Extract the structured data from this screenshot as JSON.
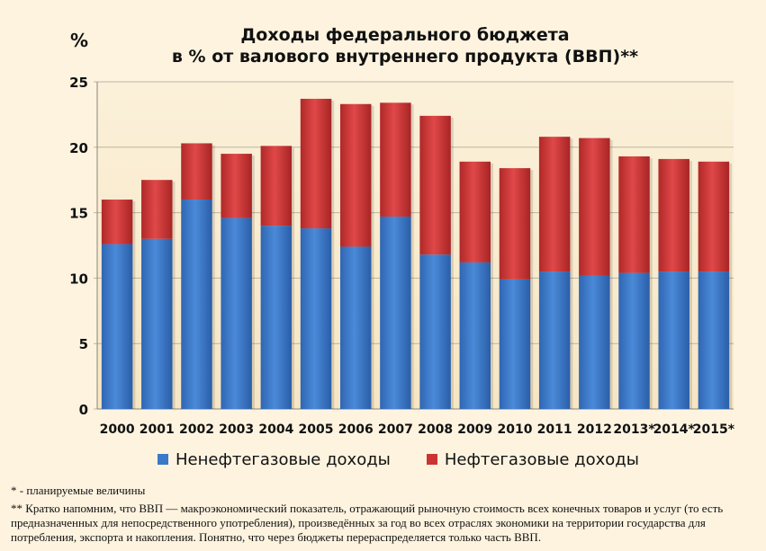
{
  "title_line1": "Доходы федерального бюджета",
  "title_line2": "в % от валового внутреннего продукта (ВВП)**",
  "y_unit": "%",
  "legend": {
    "series1": "Ненефтегазовые доходы",
    "series2": "Нефтегазовые доходы"
  },
  "notes": {
    "note1": "* - планируемые величины",
    "note2": "** Кратко напомним, что ВВП — макроэкономический показатель, отражающий рыночную стоимость всех конечных товаров и услуг (то есть предназначенных для непосредственного употребления), произведённых за год во всех отраслях экономики на территории государства для потребления, экспорта и накопления. Понятно, что через бюджеты перераспределяется только часть ВВП."
  },
  "colors": {
    "series1": "#3a78c9",
    "series2": "#cc3333",
    "background": "#fdf3df"
  },
  "chart_data": {
    "type": "bar",
    "stacked": true,
    "categories": [
      "2000",
      "2001",
      "2002",
      "2003",
      "2004",
      "2005",
      "2006",
      "2007",
      "2008",
      "2009",
      "2010",
      "2011",
      "2012",
      "2013*",
      "2014*",
      "2015*"
    ],
    "series": [
      {
        "name": "Ненефтегазовые доходы",
        "values": [
          12.6,
          13.0,
          16.0,
          14.6,
          14.0,
          13.8,
          12.4,
          14.7,
          11.8,
          11.2,
          9.9,
          10.5,
          10.2,
          10.4,
          10.5,
          10.5
        ]
      },
      {
        "name": "Нефтегазовые доходы",
        "values": [
          3.4,
          4.5,
          4.3,
          4.9,
          6.1,
          9.9,
          10.9,
          8.7,
          10.6,
          7.7,
          8.5,
          10.3,
          10.5,
          8.9,
          8.6,
          8.4
        ]
      }
    ],
    "ylim": [
      0,
      25
    ],
    "yticks": [
      0,
      5,
      10,
      15,
      20,
      25
    ],
    "grid": true,
    "legend_position": "bottom"
  }
}
